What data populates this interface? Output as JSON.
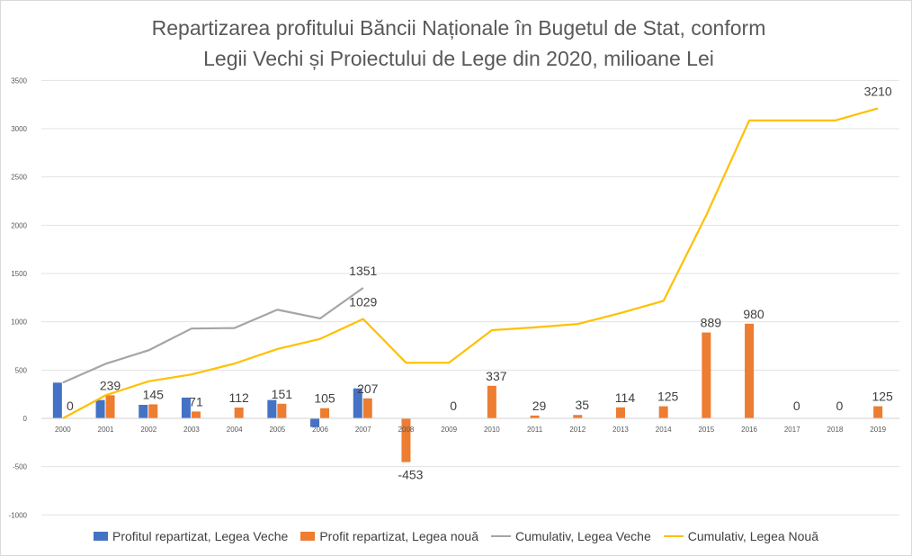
{
  "chart_data": {
    "type": "bar+line",
    "title_lines": [
      "Repartizarea profitului Băncii Naționale în Bugetul de Stat, conform",
      "Legii Vechi și Proiectului de Lege din 2020, milioane Lei"
    ],
    "categories": [
      "2000",
      "2001",
      "2002",
      "2003",
      "2004",
      "2005",
      "2006",
      "2007",
      "2008",
      "2009",
      "2010",
      "2011",
      "2012",
      "2013",
      "2014",
      "2015",
      "2016",
      "2017",
      "2018",
      "2019"
    ],
    "ylim": [
      -1000,
      3500
    ],
    "yticks": [
      "-1000",
      "-500",
      "0",
      "500",
      "1000",
      "1500",
      "2000",
      "2500",
      "3000",
      "3500"
    ],
    "grid": true,
    "legend_position": "bottom",
    "series": [
      {
        "name": "Profitul repartizat, Legea Veche",
        "kind": "bar",
        "color": "#4472C4",
        "values": [
          370,
          190,
          140,
          215,
          0,
          190,
          -90,
          310,
          null,
          null,
          null,
          null,
          null,
          null,
          null,
          null,
          null,
          null,
          null,
          null
        ]
      },
      {
        "name": "Profit repartizat, Legea nouă",
        "kind": "bar",
        "color": "#ED7D31",
        "values": [
          0,
          239,
          145,
          71,
          112,
          151,
          105,
          207,
          -453,
          0,
          337,
          29,
          35,
          114,
          125,
          889,
          980,
          0,
          0,
          125
        ]
      },
      {
        "name": "Cumulativ, Legea Veche",
        "kind": "line",
        "color": "#A5A5A5",
        "values": [
          370,
          565,
          705,
          930,
          935,
          1125,
          1035,
          1351,
          null,
          null,
          null,
          null,
          null,
          null,
          null,
          null,
          null,
          null,
          null,
          null
        ]
      },
      {
        "name": "Cumulativ, Legea Nouă",
        "kind": "line",
        "color": "#FFC000",
        "values": [
          0,
          239,
          384,
          455,
          567,
          718,
          823,
          1029,
          576,
          576,
          913,
          942,
          977,
          1091,
          1216,
          2105,
          3085,
          3085,
          3085,
          3210
        ]
      }
    ],
    "data_labels": [
      {
        "series": 1,
        "index": 0,
        "text": "0"
      },
      {
        "series": 1,
        "index": 1,
        "text": "239"
      },
      {
        "series": 1,
        "index": 2,
        "text": "145"
      },
      {
        "series": 1,
        "index": 3,
        "text": "71"
      },
      {
        "series": 1,
        "index": 4,
        "text": "112"
      },
      {
        "series": 1,
        "index": 5,
        "text": "151"
      },
      {
        "series": 1,
        "index": 6,
        "text": "105"
      },
      {
        "series": 1,
        "index": 7,
        "text": "207"
      },
      {
        "series": 1,
        "index": 8,
        "text": "-453"
      },
      {
        "series": 1,
        "index": 9,
        "text": "0"
      },
      {
        "series": 1,
        "index": 10,
        "text": "337"
      },
      {
        "series": 1,
        "index": 11,
        "text": "29"
      },
      {
        "series": 1,
        "index": 12,
        "text": "35"
      },
      {
        "series": 1,
        "index": 13,
        "text": "114"
      },
      {
        "series": 1,
        "index": 14,
        "text": "125"
      },
      {
        "series": 1,
        "index": 15,
        "text": "889"
      },
      {
        "series": 1,
        "index": 16,
        "text": "980"
      },
      {
        "series": 1,
        "index": 17,
        "text": "0"
      },
      {
        "series": 1,
        "index": 18,
        "text": "0"
      },
      {
        "series": 1,
        "index": 19,
        "text": "125"
      },
      {
        "series": 2,
        "index": 7,
        "text": "1351"
      },
      {
        "series": 3,
        "index": 7,
        "text": "1029"
      },
      {
        "series": 3,
        "index": 19,
        "text": "3210"
      }
    ]
  }
}
